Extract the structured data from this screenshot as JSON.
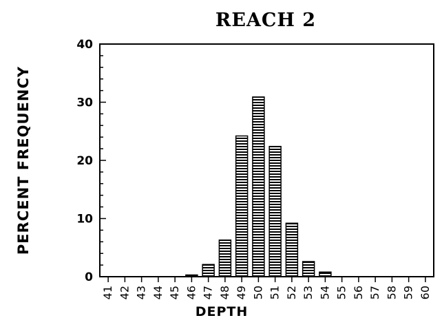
{
  "chart_data": {
    "type": "bar",
    "title": "REACH 2",
    "xlabel": "DEPTH",
    "ylabel": "PERCENT FREQUENCY",
    "ylim": [
      0,
      40
    ],
    "yticks": [
      0,
      10,
      20,
      30,
      40
    ],
    "categories": [
      "41",
      "42",
      "43",
      "44",
      "45",
      "46",
      "47",
      "48",
      "49",
      "50",
      "51",
      "52",
      "53",
      "54",
      "55",
      "56",
      "57",
      "58",
      "59",
      "60"
    ],
    "values": [
      0,
      0,
      0,
      0,
      0,
      0.3,
      2.1,
      6.3,
      24.2,
      30.9,
      22.4,
      9.2,
      2.6,
      0.8,
      0,
      0,
      0,
      0,
      0,
      0
    ],
    "grid": false,
    "legend": "none",
    "bar_pattern": "horizontal-stripes",
    "colors": {
      "bar_fill": "#ffffff",
      "bar_stroke": "#000000",
      "axis": "#000000"
    }
  }
}
